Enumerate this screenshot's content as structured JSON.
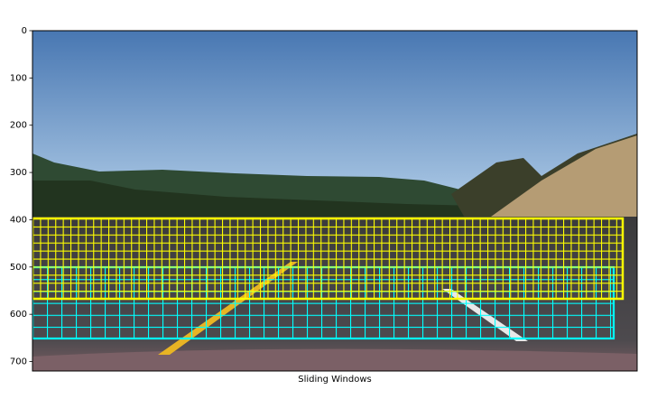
{
  "chart_data": {
    "type": "image",
    "xlabel": "Sliding Windows",
    "ylim": [
      720,
      0
    ],
    "yticks": [
      0,
      100,
      200,
      300,
      400,
      500,
      600,
      700
    ]
  }
}
